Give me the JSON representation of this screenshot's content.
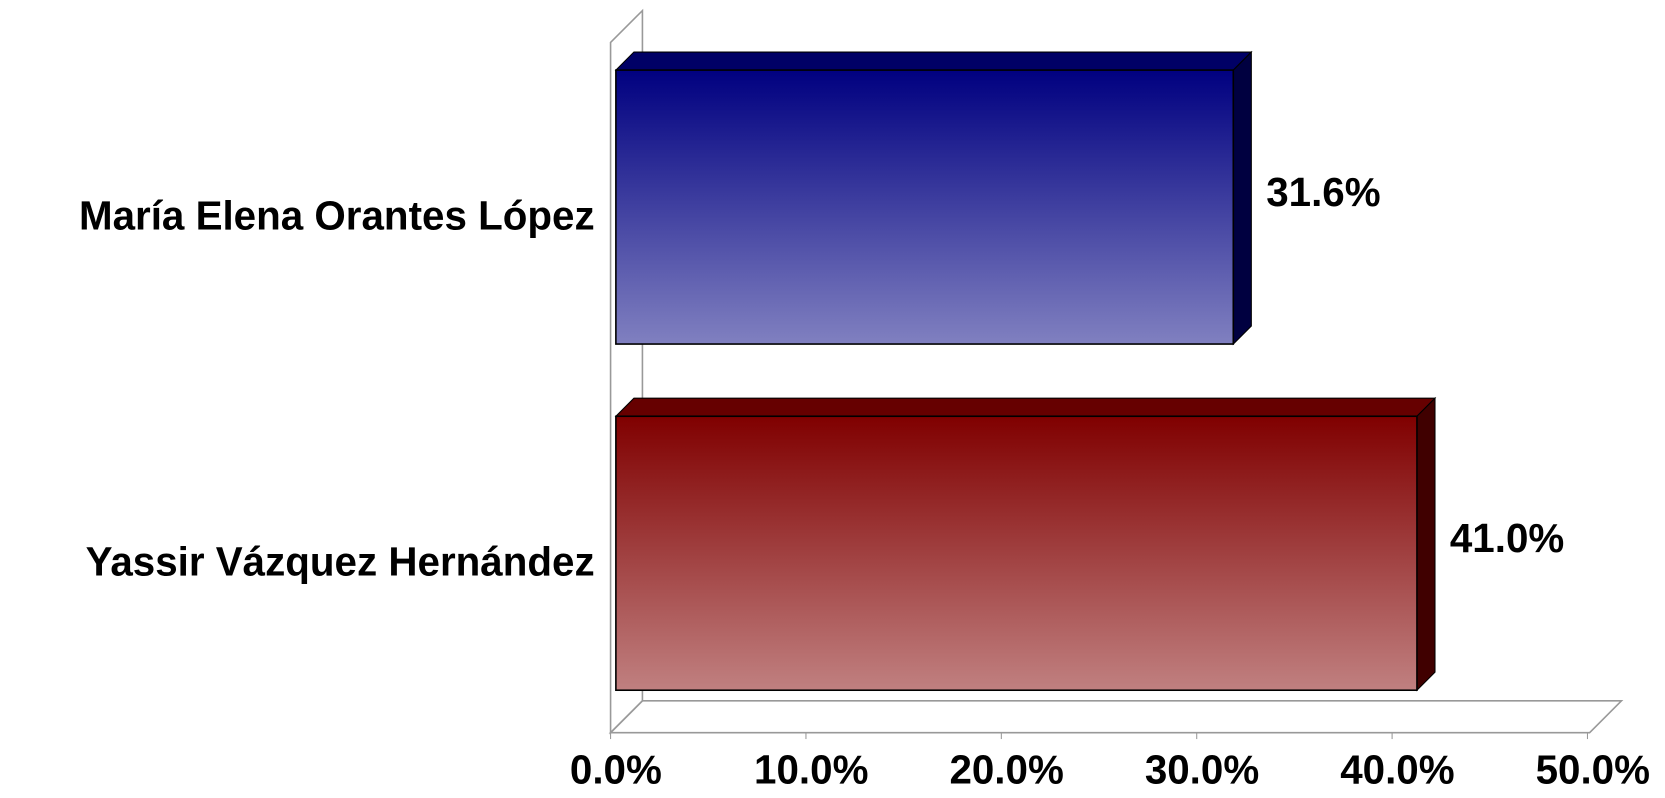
{
  "chart_data": {
    "type": "bar",
    "orientation": "horizontal",
    "categories": [
      "María Elena Orantes López",
      "Yassir Vázquez Hernández"
    ],
    "values": [
      31.6,
      41.0
    ],
    "value_labels": [
      "31.6%",
      "41.0%"
    ],
    "colors": [
      "#000080",
      "#800000"
    ],
    "xlim": [
      0,
      50
    ],
    "xticks": [
      {
        "value": 0,
        "label": "0.0%"
      },
      {
        "value": 10,
        "label": "10.0%"
      },
      {
        "value": 20,
        "label": "20.0%"
      },
      {
        "value": 30,
        "label": "30.0%"
      },
      {
        "value": 40,
        "label": "40.0%"
      },
      {
        "value": 50,
        "label": "50.0%"
      }
    ]
  }
}
